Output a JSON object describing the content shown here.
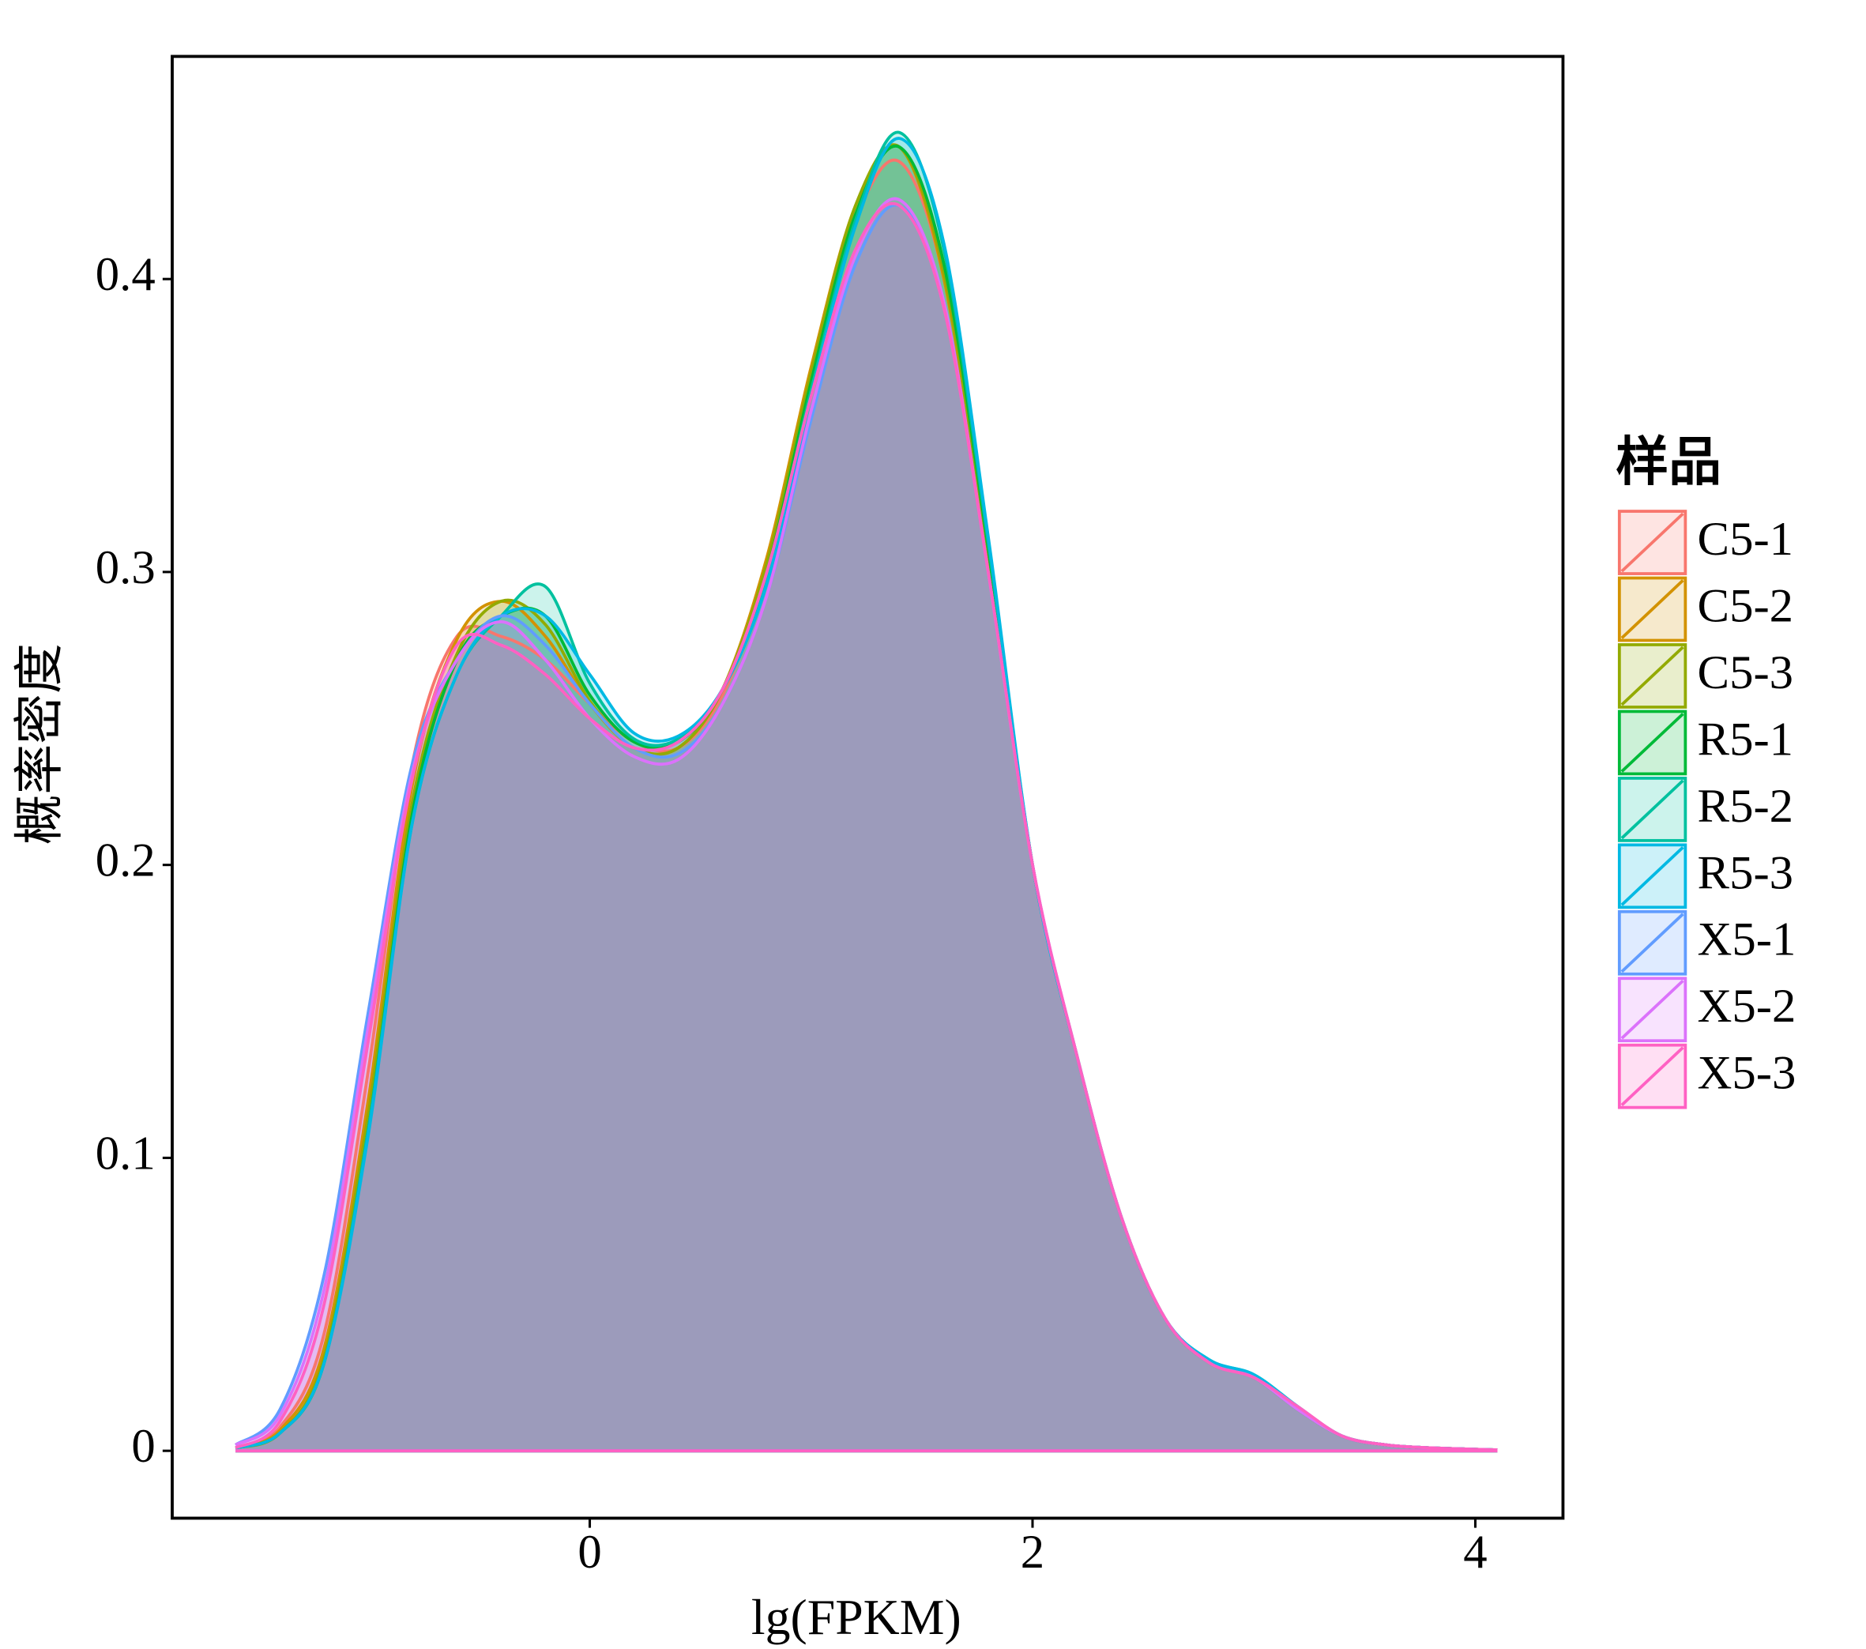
{
  "chart_data": {
    "type": "density",
    "x_label": "lg(FPKM)",
    "y_label": "概率密度",
    "legend_title": "样品",
    "legend_position": "right",
    "xlim": [
      -1.886,
      4.396
    ],
    "ylim": [
      -0.023,
      0.476
    ],
    "xticks": [
      0,
      2,
      4
    ],
    "yticks": [
      0,
      0.1,
      0.2,
      0.3,
      0.4
    ],
    "x": [
      -1.6,
      -1.4,
      -1.2,
      -1.0,
      -0.8,
      -0.6,
      -0.4,
      -0.2,
      0,
      0.2,
      0.4,
      0.6,
      0.8,
      1.0,
      1.2,
      1.4,
      1.6,
      1.8,
      2.0,
      2.2,
      2.4,
      2.6,
      2.8,
      3.0,
      3.2,
      3.4,
      3.6,
      3.8,
      4.0,
      4.1
    ],
    "series": [
      {
        "name": "C5-1",
        "color": "#F8766D",
        "values": [
          0.001,
          0.008,
          0.04,
          0.13,
          0.235,
          0.278,
          0.278,
          0.27,
          0.255,
          0.242,
          0.24,
          0.258,
          0.3,
          0.365,
          0.42,
          0.44,
          0.4,
          0.305,
          0.2,
          0.135,
          0.08,
          0.045,
          0.03,
          0.025,
          0.014,
          0.005,
          0.002,
          0.001,
          0.0005,
          0.0003
        ]
      },
      {
        "name": "C5-2",
        "color": "#D39200",
        "values": [
          0.001,
          0.007,
          0.035,
          0.12,
          0.228,
          0.277,
          0.29,
          0.278,
          0.255,
          0.24,
          0.24,
          0.26,
          0.305,
          0.37,
          0.425,
          0.445,
          0.4,
          0.305,
          0.2,
          0.135,
          0.08,
          0.045,
          0.03,
          0.025,
          0.014,
          0.005,
          0.002,
          0.001,
          0.0005,
          0.0003
        ]
      },
      {
        "name": "C5-3",
        "color": "#93AA00",
        "values": [
          0.001,
          0.006,
          0.032,
          0.115,
          0.222,
          0.272,
          0.29,
          0.282,
          0.256,
          0.24,
          0.24,
          0.26,
          0.303,
          0.368,
          0.425,
          0.445,
          0.402,
          0.305,
          0.2,
          0.135,
          0.08,
          0.045,
          0.03,
          0.025,
          0.014,
          0.005,
          0.002,
          0.001,
          0.0005,
          0.0003
        ]
      },
      {
        "name": "R5-1",
        "color": "#00BA38",
        "values": [
          0.001,
          0.006,
          0.03,
          0.11,
          0.218,
          0.27,
          0.285,
          0.285,
          0.258,
          0.242,
          0.242,
          0.26,
          0.3,
          0.365,
          0.422,
          0.445,
          0.405,
          0.308,
          0.2,
          0.135,
          0.08,
          0.045,
          0.03,
          0.025,
          0.014,
          0.005,
          0.002,
          0.001,
          0.0005,
          0.0003
        ]
      },
      {
        "name": "R5-2",
        "color": "#00C19F",
        "values": [
          0.001,
          0.006,
          0.03,
          0.11,
          0.215,
          0.265,
          0.285,
          0.295,
          0.262,
          0.243,
          0.243,
          0.26,
          0.298,
          0.362,
          0.42,
          0.45,
          0.41,
          0.31,
          0.2,
          0.135,
          0.08,
          0.045,
          0.031,
          0.026,
          0.015,
          0.005,
          0.002,
          0.001,
          0.0005,
          0.0003
        ]
      },
      {
        "name": "R5-3",
        "color": "#00B9E3",
        "values": [
          0.001,
          0.006,
          0.03,
          0.108,
          0.215,
          0.265,
          0.285,
          0.285,
          0.265,
          0.245,
          0.244,
          0.26,
          0.296,
          0.36,
          0.418,
          0.448,
          0.412,
          0.312,
          0.2,
          0.135,
          0.08,
          0.045,
          0.031,
          0.026,
          0.015,
          0.005,
          0.002,
          0.001,
          0.0005,
          0.0003
        ]
      },
      {
        "name": "X5-1",
        "color": "#619CFF",
        "values": [
          0.002,
          0.014,
          0.06,
          0.15,
          0.235,
          0.27,
          0.285,
          0.275,
          0.255,
          0.24,
          0.238,
          0.255,
          0.292,
          0.352,
          0.405,
          0.425,
          0.392,
          0.3,
          0.2,
          0.135,
          0.08,
          0.045,
          0.03,
          0.025,
          0.014,
          0.005,
          0.002,
          0.001,
          0.0005,
          0.0003
        ]
      },
      {
        "name": "X5-2",
        "color": "#DB72FB",
        "values": [
          0.002,
          0.012,
          0.055,
          0.145,
          0.232,
          0.27,
          0.283,
          0.27,
          0.25,
          0.237,
          0.236,
          0.255,
          0.292,
          0.355,
          0.408,
          0.427,
          0.392,
          0.3,
          0.2,
          0.135,
          0.08,
          0.045,
          0.03,
          0.025,
          0.014,
          0.005,
          0.002,
          0.001,
          0.0005,
          0.0003
        ]
      },
      {
        "name": "X5-3",
        "color": "#FF61C3",
        "values": [
          0.001,
          0.01,
          0.05,
          0.14,
          0.23,
          0.275,
          0.275,
          0.265,
          0.25,
          0.24,
          0.242,
          0.26,
          0.3,
          0.36,
          0.41,
          0.425,
          0.39,
          0.3,
          0.2,
          0.135,
          0.08,
          0.045,
          0.03,
          0.025,
          0.015,
          0.005,
          0.002,
          0.001,
          0.0005,
          0.0003
        ]
      }
    ]
  }
}
